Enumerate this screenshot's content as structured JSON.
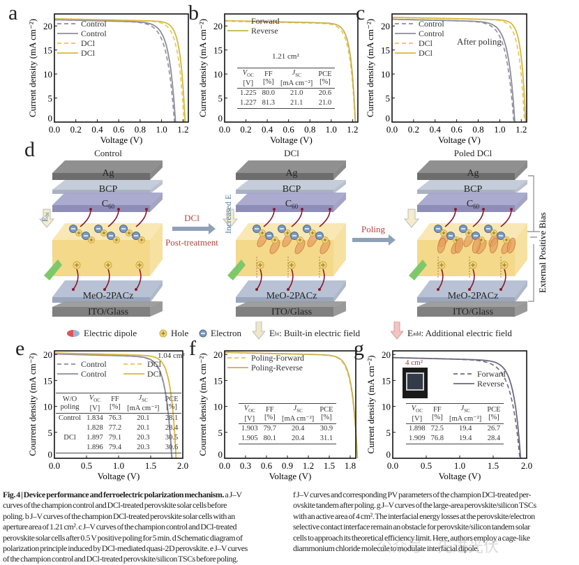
{
  "panel_letters": {
    "a": "a",
    "b": "b",
    "c": "c",
    "d": "d",
    "e": "e",
    "f": "f",
    "g": "g"
  },
  "colors": {
    "control": "#8c8c9c",
    "dcl": "#e6c64a",
    "dcl_dark": "#c9a82c",
    "poled_text": "#b0453a"
  },
  "chart_data": [
    {
      "panel": "a",
      "type": "line",
      "xlabel": "Voltage (V)",
      "ylabel": "Current density (mA cm⁻²)",
      "xlim": [
        0,
        1.25
      ],
      "ylim": [
        0,
        22.5
      ],
      "xticks": [
        "0.0",
        "0.2",
        "0.4",
        "0.6",
        "0.8",
        "1.0",
        "1.2"
      ],
      "yticks": [
        "0",
        "5",
        "10",
        "15",
        "20"
      ],
      "legend": "top-left",
      "annotation": "",
      "series": [
        {
          "name": "Control",
          "dash": true,
          "color": "#8c8c9c",
          "jsc": 21.3,
          "voc": 1.12,
          "ff": 0.75
        },
        {
          "name": "Control",
          "dash": false,
          "color": "#8c8c9c",
          "jsc": 21.3,
          "voc": 1.13,
          "ff": 0.77
        },
        {
          "name": "DCl",
          "dash": true,
          "color": "#e6c64a",
          "jsc": 21.5,
          "voc": 1.21,
          "ff": 0.79
        },
        {
          "name": "DCl",
          "dash": false,
          "color": "#d9b83a",
          "jsc": 21.5,
          "voc": 1.22,
          "ff": 0.81
        }
      ]
    },
    {
      "panel": "b",
      "type": "line",
      "xlabel": "Voltage (V)",
      "ylabel": "Current density (mA cm⁻²)",
      "xlim": [
        0,
        1.25
      ],
      "ylim": [
        0,
        22.5
      ],
      "xticks": [
        "0.0",
        "0.2",
        "0.4",
        "0.6",
        "0.8",
        "1.0",
        "1.2"
      ],
      "yticks": [
        "0",
        "5",
        "10",
        "15",
        "20"
      ],
      "legend": "top-left",
      "annotation": "1.21 cm²",
      "series": [
        {
          "name": "Forward",
          "dash": true,
          "color": "#e6c64a",
          "jsc": 21.0,
          "voc": 1.225,
          "ff": 0.8
        },
        {
          "name": "Reverse",
          "dash": false,
          "color": "#c9b04a",
          "jsc": 21.1,
          "voc": 1.227,
          "ff": 0.813
        }
      ],
      "table": {
        "headers": [
          [
            "V",
            "OC",
            "[V]"
          ],
          [
            "FF",
            "",
            "[%]"
          ],
          [
            "J",
            "SC",
            "[mA cm⁻²]"
          ],
          [
            "PCE",
            "",
            "[%]"
          ]
        ],
        "rows": [
          [
            "1.225",
            "80.0",
            "21.0",
            "20.6"
          ],
          [
            "1.227",
            "81.3",
            "21.1",
            "21.0"
          ]
        ]
      }
    },
    {
      "panel": "c",
      "type": "line",
      "xlabel": "Voltage (V)",
      "ylabel": "Current density (mA cm⁻²)",
      "xlim": [
        0,
        1.25
      ],
      "ylim": [
        0,
        22.5
      ],
      "xticks": [
        "0.0",
        "0.2",
        "0.4",
        "0.6",
        "0.8",
        "1.0",
        "1.2"
      ],
      "yticks": [
        "0",
        "5",
        "10",
        "15",
        "20"
      ],
      "legend": "top-left",
      "annotation": "After poling",
      "series": [
        {
          "name": "Control",
          "dash": true,
          "color": "#8c8c9c",
          "jsc": 21.4,
          "voc": 1.13,
          "ff": 0.75
        },
        {
          "name": "Control",
          "dash": false,
          "color": "#8c8c9c",
          "jsc": 21.4,
          "voc": 1.14,
          "ff": 0.77
        },
        {
          "name": "DCl",
          "dash": true,
          "color": "#e6c64a",
          "jsc": 21.8,
          "voc": 1.23,
          "ff": 0.8
        },
        {
          "name": "DCl",
          "dash": false,
          "color": "#d9b83a",
          "jsc": 21.8,
          "voc": 1.24,
          "ff": 0.82
        }
      ]
    },
    {
      "panel": "e",
      "type": "line",
      "xlabel": "Voltage (V)",
      "ylabel": "Courrent density (mA cm⁻²)",
      "xlim": [
        0,
        2.0
      ],
      "ylim": [
        0,
        20.7
      ],
      "xticks": [
        "0.0",
        "0.5",
        "1.0",
        "1.5",
        "2.0"
      ],
      "yticks": [
        "0",
        "5",
        "10",
        "15",
        "20"
      ],
      "legend": "top",
      "annotation": "1.04 cm²",
      "series": [
        {
          "name": "Control",
          "dash": true,
          "color": "#8c8c9c",
          "jsc": 20.1,
          "voc": 1.834,
          "ff": 0.763
        },
        {
          "name": "Control",
          "dash": false,
          "color": "#8c8c9c",
          "jsc": 20.1,
          "voc": 1.828,
          "ff": 0.772
        },
        {
          "name": "DCl",
          "dash": true,
          "color": "#e6c64a",
          "jsc": 20.3,
          "voc": 1.897,
          "ff": 0.791
        },
        {
          "name": "DCl",
          "dash": false,
          "color": "#d9b83a",
          "jsc": 20.3,
          "voc": 1.896,
          "ff": 0.794
        }
      ],
      "table": {
        "headers": [
          [
            "W/O",
            "",
            "poling"
          ],
          [
            "V",
            "OC",
            "[V]"
          ],
          [
            "FF",
            "",
            "[%]"
          ],
          [
            "J",
            "SC",
            "[mA cm⁻²]"
          ],
          [
            "PCE",
            "",
            "[%]"
          ]
        ],
        "rows": [
          [
            "Control",
            "1.834",
            "76.3",
            "20.1",
            "28.1"
          ],
          [
            "",
            "1.828",
            "77.2",
            "20.1",
            "28.4"
          ],
          [
            "DCl",
            "1.897",
            "79.1",
            "20.3",
            "30.5"
          ],
          [
            "",
            "1.896",
            "79.4",
            "20.3",
            "30.6"
          ]
        ]
      }
    },
    {
      "panel": "f",
      "type": "line",
      "xlabel": "Voltage (V)",
      "ylabel": "Courrent density (mA cm⁻²)",
      "xlim": [
        0,
        1.88
      ],
      "ylim": [
        0,
        20.7
      ],
      "xticks": [
        "0.0",
        "0.3",
        "0.6",
        "0.9",
        "1.2",
        "1.5",
        "1.8"
      ],
      "yticks": [
        "0",
        "5",
        "10",
        "15",
        "20"
      ],
      "legend": "top-left",
      "annotation": "",
      "series": [
        {
          "name": "Poling-Forward",
          "dash": true,
          "color": "#e6c64a",
          "jsc": 20.4,
          "voc": 1.903,
          "ff": 0.797
        },
        {
          "name": "Poling-Reverse",
          "dash": false,
          "color": "#c9b04a",
          "jsc": 20.4,
          "voc": 1.905,
          "ff": 0.801
        }
      ],
      "table": {
        "headers": [
          [
            "V",
            "OC",
            "[V]"
          ],
          [
            "FF",
            "",
            "[%]"
          ],
          [
            "J",
            "SC",
            "[mA cm⁻²]"
          ],
          [
            "PCE",
            "",
            "[%]"
          ]
        ],
        "rows": [
          [
            "1.903",
            "79.7",
            "20.4",
            "30.9"
          ],
          [
            "1.905",
            "80.1",
            "20.4",
            "31.1"
          ]
        ]
      }
    },
    {
      "panel": "g",
      "type": "line",
      "xlabel": "Voltage (V)",
      "ylabel": "Current density (mA cm⁻²)",
      "xlim": [
        0,
        2.0
      ],
      "ylim": [
        0,
        20.7
      ],
      "xticks": [
        "0.0",
        "0.5",
        "1.0",
        "1.5",
        "2.0"
      ],
      "yticks": [
        "0",
        "5",
        "10",
        "15",
        "20"
      ],
      "legend": "right",
      "annotation": "4 cm²",
      "series": [
        {
          "name": "Forward",
          "dash": true,
          "color": "#6a6a80",
          "jsc": 19.4,
          "voc": 1.898,
          "ff": 0.725
        },
        {
          "name": "Reverse",
          "dash": false,
          "color": "#6a6a80",
          "jsc": 19.4,
          "voc": 1.909,
          "ff": 0.768
        }
      ],
      "table": {
        "headers": [
          [
            "V",
            "OC",
            "[V]"
          ],
          [
            "FF",
            "",
            "[%]"
          ],
          [
            "J",
            "SC",
            "[mA cm⁻²]"
          ],
          [
            "PCE",
            "",
            "[%]"
          ]
        ],
        "rows": [
          [
            "1.898",
            "72.5",
            "19.4",
            "26.7"
          ],
          [
            "1.909",
            "76.8",
            "19.4",
            "28.4"
          ]
        ]
      }
    }
  ],
  "schematic": {
    "titles": [
      "Control",
      "DCl",
      "Poled DCl"
    ],
    "layers": {
      "ag": "Ag",
      "bcp": "BCP",
      "c60": "C",
      "c60_sub": "60",
      "meo": "MeO-2PACz",
      "ito": "ITO/Glass"
    },
    "ebi_label": "E",
    "ebi_sub": "bi",
    "increased_ebi": "Increased E",
    "arrow1_top": "DCl",
    "arrow1_bottom": "Post-treatment",
    "arrow2": "Poling",
    "external_bias": "External Positive Bias",
    "legend": {
      "dipole": "Electric dipole",
      "hole": "Hole",
      "electron": "Electron",
      "ebi": "E",
      "ebi_sub": "bi",
      "ebi_text": ": Built-in electric field",
      "eadd": "E",
      "eadd_sub": "add",
      "eadd_text": ": Additional electric field"
    }
  },
  "caption": {
    "title": "Fig. 4 | Device performance and ferroelectric polarization mechanism.",
    "left_lines": [
      " a J–V",
      "curves of the champion control and DCl-treated perovskite solar cells before",
      "poling. b J–V curves of the champion DCl-treated perovskite solar cells with an",
      "aperture area of 1.21 cm². c J–V curves of the champion control and DCl-treated",
      "perovskite solar cells after 0.5 V positive poling for 5 min. d Schematic diagram of",
      "polarization principle induced by DCl-mediated quasi-2D perovskite. e J–V curves",
      "of the champion control and DCl-treated perovskite/silicon TSCs before poling."
    ],
    "right_lines": [
      "f J–V curves and corresponding PV parameters of the champion DCl-treated per-",
      "ovskite tandem after poling. g J–V curves of the large-area perovskite/silicon TSCs",
      "with an active area of 4 cm². The interfacial energy losses at the perovskite/electron",
      "selective contact interface remain an obstacle for perovskite/silicon tandem solar",
      "cells to approach its theoretical efficiency limit. Here, authors employ a cage-like",
      "diammonium chloride molecule to modulate interfacial dipole."
    ]
  },
  "watermark": "公众号 · 先进光伏"
}
